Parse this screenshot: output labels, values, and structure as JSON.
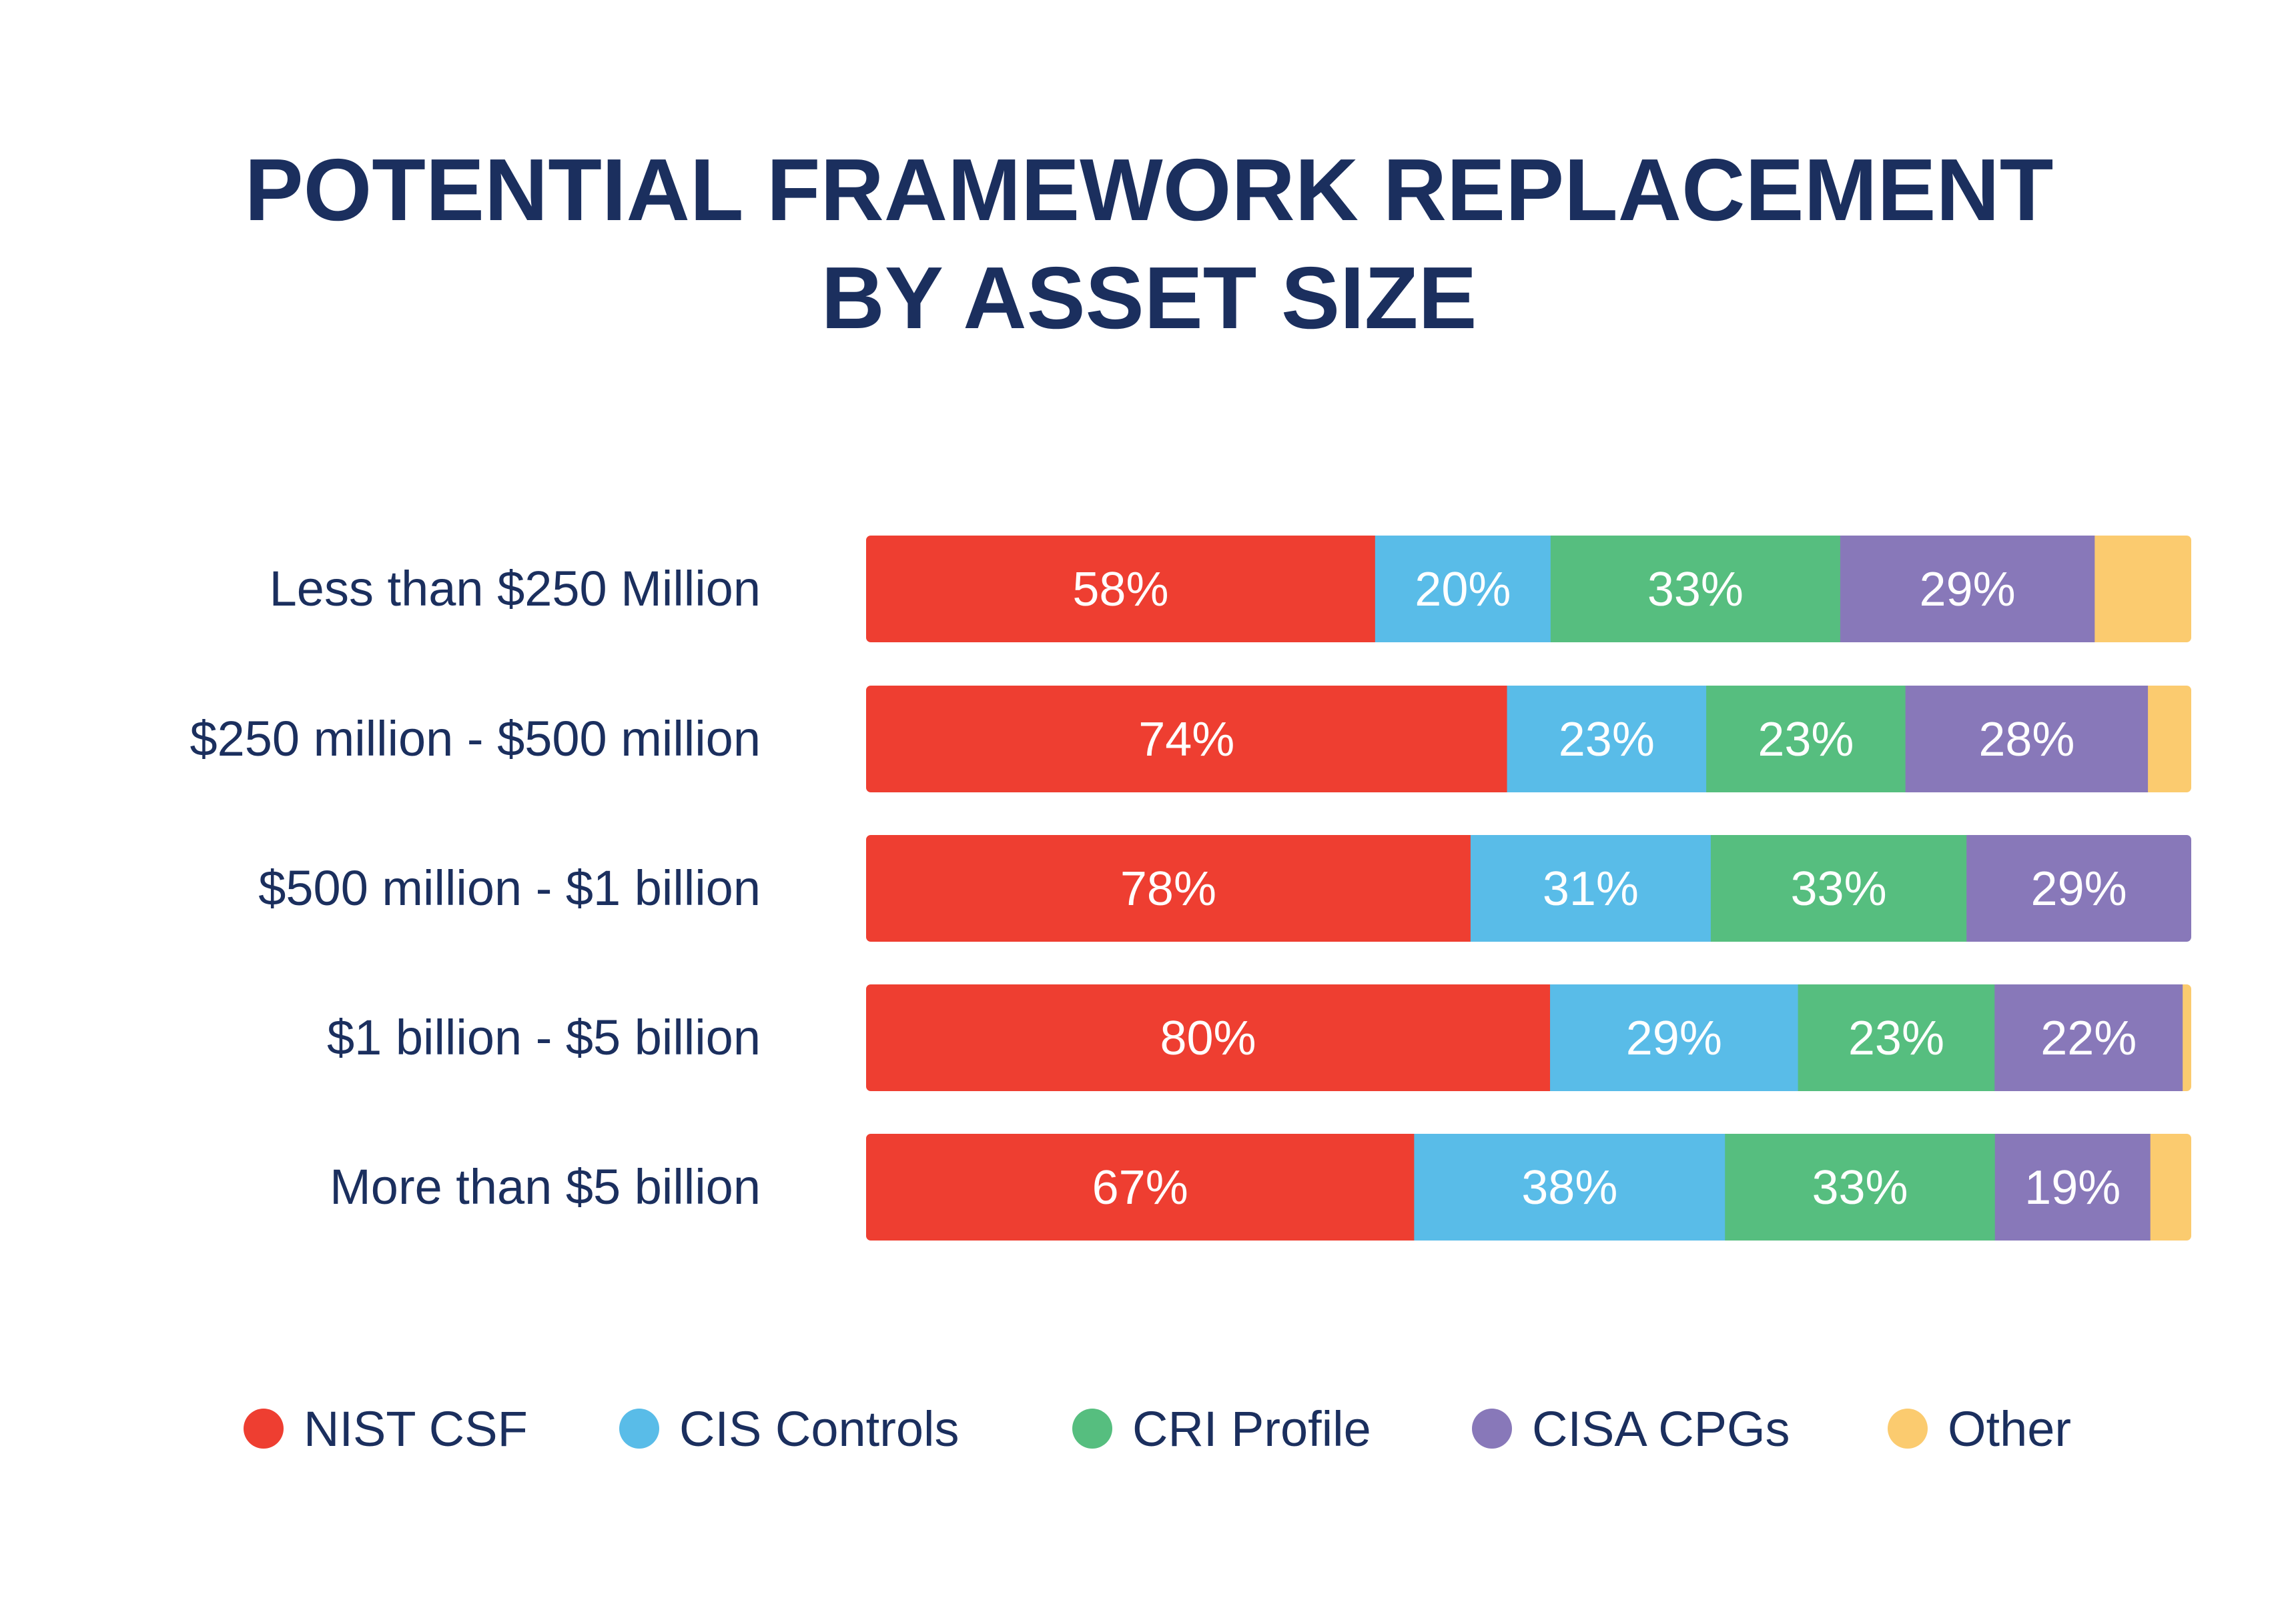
{
  "chart_data": {
    "type": "bar",
    "orientation": "horizontal",
    "stacked": true,
    "title": "POTENTIAL FRAMEWORK REPLACEMENT\nBY ASSET SIZE",
    "categories": [
      "Less than $250 Million",
      "$250 million - $500 million",
      "$500 million - $1 billion",
      "$1 billion - $5 billion",
      "More than $5 billion"
    ],
    "series": [
      {
        "name": "NIST CSF",
        "color": "#EE3E31",
        "values": [
          58,
          74,
          78,
          80,
          67
        ]
      },
      {
        "name": "CIS Controls",
        "color": "#59BCE8",
        "values": [
          20,
          23,
          31,
          29,
          38
        ]
      },
      {
        "name": "CRI Profile",
        "color": "#56BE7F",
        "values": [
          33,
          23,
          33,
          23,
          33
        ]
      },
      {
        "name": "CISA CPGs",
        "color": "#8878B9",
        "values": [
          29,
          28,
          29,
          22,
          19
        ]
      },
      {
        "name": "Other",
        "color": "#FBCB6F",
        "values": [
          11,
          5,
          0,
          1,
          5
        ]
      }
    ],
    "data_labels": [
      [
        "58%",
        "20%",
        "33%",
        "29%",
        ""
      ],
      [
        "74%",
        "23%",
        "23%",
        "28%",
        ""
      ],
      [
        "78%",
        "31%",
        "33%",
        "29%",
        ""
      ],
      [
        "80%",
        "29%",
        "23%",
        "22%",
        ""
      ],
      [
        "67%",
        "38%",
        "33%",
        "19%",
        ""
      ]
    ],
    "legend_position": "bottom",
    "grid": false,
    "colors": {
      "title": "#1B2F5E",
      "text": "#1B2F5E",
      "label": "#ffffff"
    }
  }
}
